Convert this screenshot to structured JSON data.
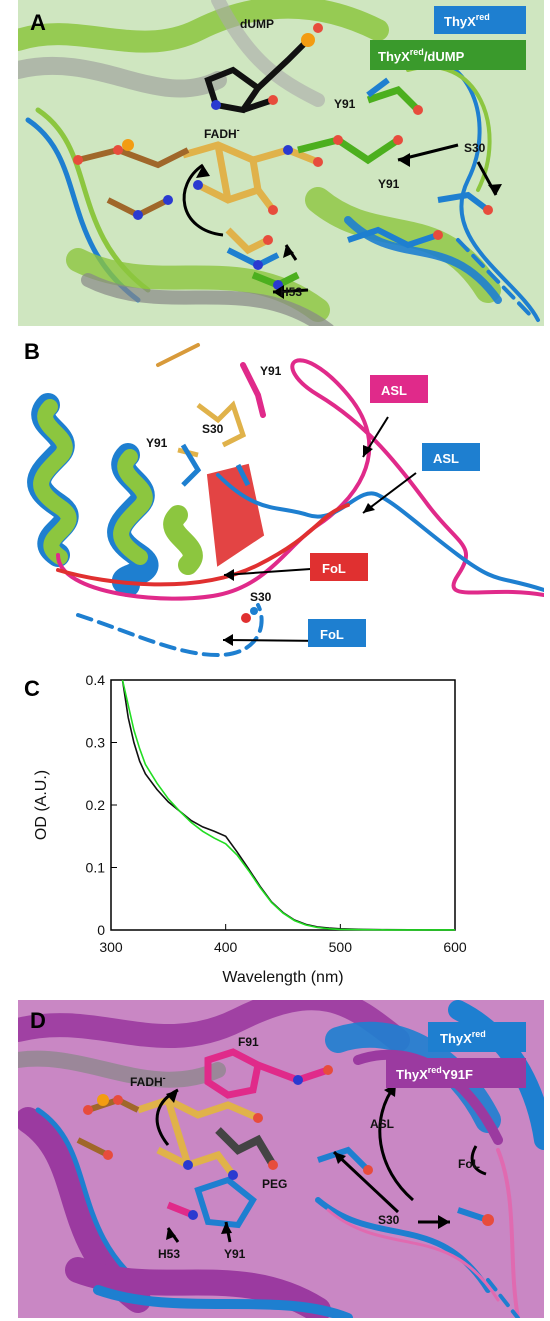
{
  "panels": {
    "a": {
      "label": "A",
      "legend": [
        {
          "text": "ThyX",
          "sup": "red",
          "rest": "",
          "color": "#1e7fd0"
        },
        {
          "text": "ThyX",
          "sup": "red",
          "rest": "/dUMP",
          "color": "#3a9a2c"
        }
      ],
      "annotations": [
        "dUMP",
        "FADH",
        "Y91",
        "S30",
        "Y91",
        "H53"
      ],
      "fadh_sup": "-"
    },
    "b": {
      "label": "B",
      "annotations": [
        "Y91",
        "Y91",
        "S30",
        "S30"
      ],
      "boxes": [
        {
          "text": "ASL",
          "color": "#e02a8a"
        },
        {
          "text": "ASL",
          "color": "#1e7fd0"
        },
        {
          "text": "FoL",
          "color": "#e03030"
        },
        {
          "text": "FoL",
          "color": "#1e7fd0"
        }
      ]
    },
    "c": {
      "label": "C"
    },
    "d": {
      "label": "D",
      "legend": [
        {
          "text": "ThyX",
          "sup": "red",
          "rest": "",
          "color": "#1e7fd0"
        },
        {
          "text": "ThyX",
          "sup": "red",
          "rest": "Y91F",
          "color": "#9b3aa0"
        }
      ],
      "annotations": [
        "FADH",
        "F91",
        "PEG",
        "ASL",
        "FoL",
        "S30",
        "H53",
        "Y91"
      ],
      "fadh_sup": "-"
    }
  },
  "chart_data": {
    "type": "line",
    "xlabel": "Wavelength (nm)",
    "ylabel": "OD (A.U.)",
    "xlim": [
      300,
      600
    ],
    "ylim": [
      0,
      0.4
    ],
    "xticks": [
      300,
      400,
      500,
      600
    ],
    "yticks": [
      0,
      0.1,
      0.2,
      0.3,
      0.4
    ],
    "grid": false,
    "series": [
      {
        "color": "#111111",
        "x": [
          310,
          315,
          320,
          325,
          330,
          340,
          350,
          360,
          370,
          380,
          390,
          400,
          410,
          420,
          430,
          440,
          450,
          460,
          470,
          480,
          490,
          500,
          520,
          540,
          560,
          580,
          600
        ],
        "y": [
          0.4,
          0.34,
          0.3,
          0.27,
          0.25,
          0.225,
          0.205,
          0.19,
          0.175,
          0.165,
          0.158,
          0.15,
          0.125,
          0.098,
          0.07,
          0.045,
          0.028,
          0.016,
          0.009,
          0.005,
          0.003,
          0.002,
          0.001,
          0.0005,
          0.0003,
          0.0002,
          0.0001
        ]
      },
      {
        "color": "#22dd22",
        "x": [
          310,
          315,
          320,
          325,
          330,
          340,
          350,
          360,
          370,
          380,
          390,
          400,
          410,
          420,
          430,
          440,
          450,
          460,
          470,
          480,
          490,
          500,
          520,
          540,
          560,
          580,
          600
        ],
        "y": [
          0.4,
          0.36,
          0.32,
          0.29,
          0.265,
          0.235,
          0.21,
          0.19,
          0.172,
          0.158,
          0.147,
          0.138,
          0.12,
          0.095,
          0.068,
          0.044,
          0.027,
          0.015,
          0.008,
          0.004,
          0.002,
          0.001,
          0.0005,
          0.0002,
          0.0001,
          0.0001,
          0.0001
        ]
      }
    ]
  }
}
